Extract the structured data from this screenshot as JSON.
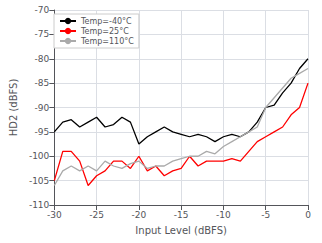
{
  "chart_data": {
    "type": "line",
    "x": [
      -30,
      -29,
      -28,
      -27,
      -26,
      -25,
      -24,
      -23,
      -22,
      -21,
      -20,
      -19,
      -18,
      -17,
      -16,
      -15,
      -14,
      -13,
      -12,
      -11,
      -10,
      -9,
      -8,
      -7,
      -6,
      -5,
      -4,
      -3,
      -2,
      -1,
      0
    ],
    "series": [
      {
        "name": "Temp=-40°C",
        "color": "#000000",
        "values": [
          -95,
          -93,
          -92.5,
          -94,
          -93,
          -92,
          -94,
          -93.5,
          -92,
          -93,
          -97.5,
          -96,
          -95,
          -94,
          -95,
          -95.5,
          -96,
          -95.5,
          -96,
          -97,
          -96,
          -95.5,
          -96,
          -95,
          -93,
          -90,
          -89.5,
          -87,
          -85,
          -82,
          -80
        ]
      },
      {
        "name": "Temp=25°C",
        "color": "#ff0000",
        "values": [
          -105,
          -99,
          -99,
          -101,
          -106,
          -104,
          -103,
          -101,
          -101,
          -102.5,
          -100,
          -103,
          -102,
          -104,
          -103,
          -102.5,
          -100,
          -102,
          -101,
          -101,
          -101,
          -100.5,
          -101,
          -99,
          -97,
          -96,
          -95,
          -94,
          -91.5,
          -90,
          -85
        ]
      },
      {
        "name": "Temp=110°C",
        "color": "#aaaaaa",
        "values": [
          -106,
          -103,
          -102,
          -103,
          -102,
          -103,
          -101,
          -102,
          -102.5,
          -101.5,
          -101,
          -102.5,
          -102,
          -102,
          -101,
          -100.5,
          -100,
          -100,
          -99,
          -99.5,
          -98,
          -97,
          -96,
          -95,
          -94,
          -90,
          -88,
          -86,
          -84,
          -83,
          -82
        ]
      }
    ],
    "xlabel": "Input Level (dBFS)",
    "ylabel": "HD2 (dBFS)",
    "xlim": [
      -30,
      0
    ],
    "ylim": [
      -110,
      -70
    ],
    "xticks": [
      -30,
      -25,
      -20,
      -15,
      -10,
      -5,
      0
    ],
    "yticks": [
      -110,
      -105,
      -100,
      -95,
      -90,
      -85,
      -80,
      -75,
      -70
    ],
    "grid": true,
    "legend": "upper left"
  }
}
